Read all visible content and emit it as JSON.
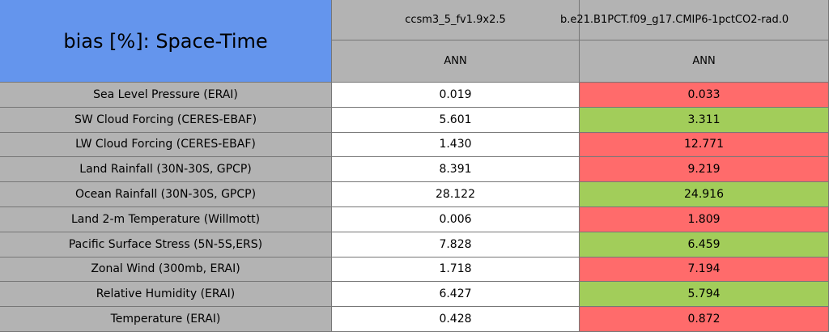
{
  "title": "bias [%]: Space-Time",
  "columns": [
    {
      "name": "ccsm3_5_fv1.9x2.5",
      "period": "ANN"
    },
    {
      "name": "b.e21.B1PCT.f09_g17.CMIP6-1pctCO2-rad.0",
      "period": "ANN"
    }
  ],
  "rows": [
    {
      "label": "Sea Level Pressure (ERAI)",
      "cells": [
        {
          "value": "0.019",
          "color": "#ffffff"
        },
        {
          "value": "0.033",
          "color": "#ff6b6b"
        }
      ]
    },
    {
      "label": "SW Cloud Forcing (CERES-EBAF)",
      "cells": [
        {
          "value": "5.601",
          "color": "#ffffff"
        },
        {
          "value": "3.311",
          "color": "#a2cd5a"
        }
      ]
    },
    {
      "label": "LW Cloud Forcing (CERES-EBAF)",
      "cells": [
        {
          "value": "1.430",
          "color": "#ffffff"
        },
        {
          "value": "12.771",
          "color": "#ff6b6b"
        }
      ]
    },
    {
      "label": "Land Rainfall (30N-30S, GPCP)",
      "cells": [
        {
          "value": "8.391",
          "color": "#ffffff"
        },
        {
          "value": "9.219",
          "color": "#ff6b6b"
        }
      ]
    },
    {
      "label": "Ocean Rainfall (30N-30S, GPCP)",
      "cells": [
        {
          "value": "28.122",
          "color": "#ffffff"
        },
        {
          "value": "24.916",
          "color": "#a2cd5a"
        }
      ]
    },
    {
      "label": "Land 2-m Temperature (Willmott)",
      "cells": [
        {
          "value": "0.006",
          "color": "#ffffff"
        },
        {
          "value": "1.809",
          "color": "#ff6b6b"
        }
      ]
    },
    {
      "label": "Pacific Surface Stress (5N-5S,ERS)",
      "cells": [
        {
          "value": "7.828",
          "color": "#ffffff"
        },
        {
          "value": "6.459",
          "color": "#a2cd5a"
        }
      ]
    },
    {
      "label": "Zonal Wind (300mb, ERAI)",
      "cells": [
        {
          "value": "1.718",
          "color": "#ffffff"
        },
        {
          "value": "7.194",
          "color": "#ff6b6b"
        }
      ]
    },
    {
      "label": "Relative Humidity (ERAI)",
      "cells": [
        {
          "value": "6.427",
          "color": "#ffffff"
        },
        {
          "value": "5.794",
          "color": "#a2cd5a"
        }
      ]
    },
    {
      "label": "Temperature (ERAI)",
      "cells": [
        {
          "value": "0.428",
          "color": "#ffffff"
        },
        {
          "value": "0.872",
          "color": "#ff6b6b"
        }
      ]
    }
  ]
}
